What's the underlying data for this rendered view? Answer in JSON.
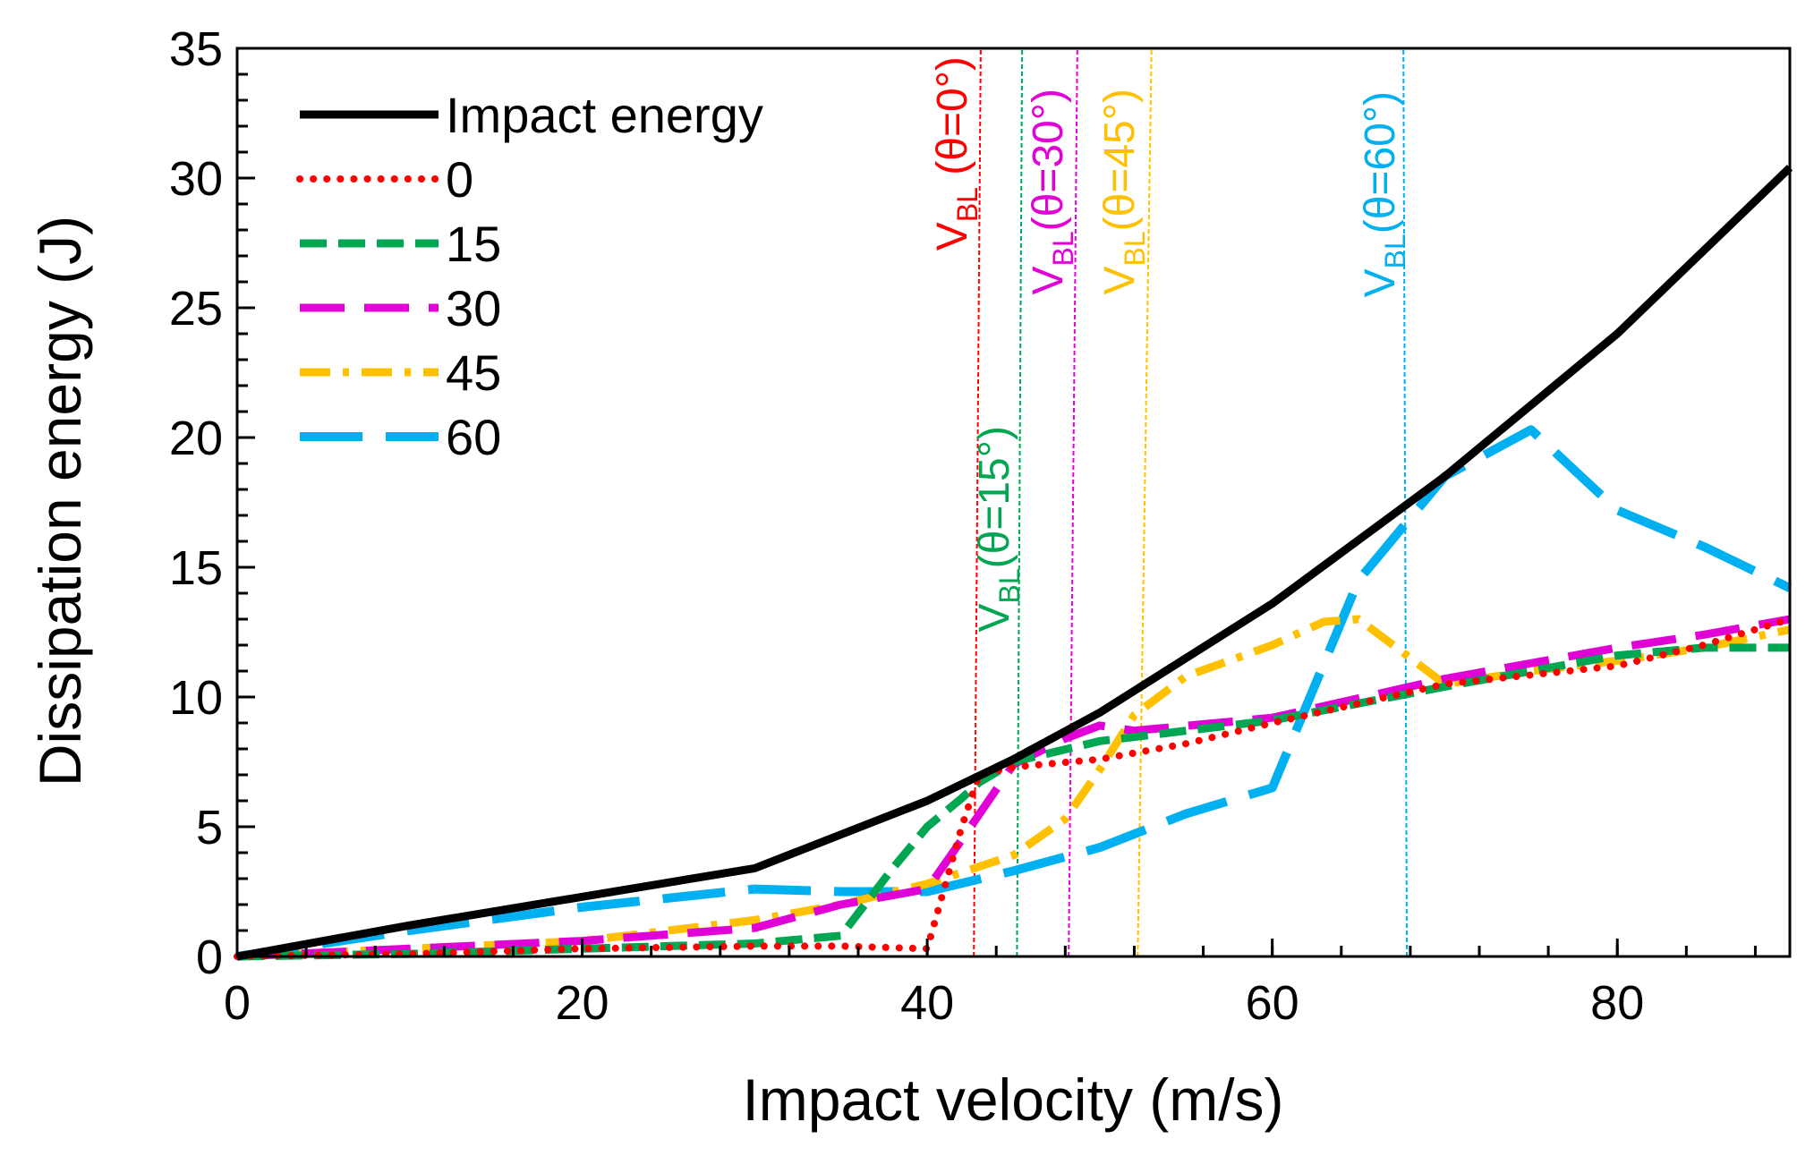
{
  "chart_data": {
    "type": "line",
    "xlabel": "Impact velocity (m/s)",
    "ylabel": "Dissipation energy (J)",
    "xlim": [
      0,
      90
    ],
    "ylim": [
      0,
      35
    ],
    "xticks": [
      0,
      20,
      40,
      60,
      80
    ],
    "yticks": [
      0,
      5,
      10,
      15,
      20,
      25,
      30,
      35
    ],
    "x_minor_step": 4,
    "y_minor_step": 1,
    "legend_position": "top-left",
    "series": [
      {
        "name": "Impact energy",
        "color": "#000000",
        "style": "solid",
        "x": [
          0,
          10,
          20,
          30,
          40,
          45,
          50,
          60,
          70,
          80,
          90
        ],
        "y": [
          0,
          1.2,
          2.3,
          3.4,
          6.0,
          7.6,
          9.4,
          13.6,
          18.5,
          24.0,
          30.4
        ]
      },
      {
        "name": "0",
        "color": "#ff0000",
        "style": "dotted",
        "x": [
          0,
          10,
          20,
          30,
          35,
          40,
          42,
          43,
          45,
          50,
          55,
          60,
          70,
          80,
          85,
          90
        ],
        "y": [
          0,
          0.1,
          0.3,
          0.4,
          0.4,
          0.3,
          5.0,
          7.0,
          7.3,
          7.6,
          8.2,
          9.0,
          10.5,
          11.2,
          12.0,
          13.0
        ]
      },
      {
        "name": "15",
        "color": "#00a651",
        "style": "dashed",
        "x": [
          0,
          10,
          20,
          30,
          35,
          38,
          40,
          42,
          43,
          45,
          50,
          60,
          70,
          80,
          85,
          90
        ],
        "y": [
          0,
          0.1,
          0.3,
          0.5,
          0.8,
          3.4,
          5.0,
          6.1,
          6.7,
          7.5,
          8.3,
          9.1,
          10.4,
          11.6,
          11.9,
          11.9
        ]
      },
      {
        "name": "30",
        "color": "#e100d6",
        "style": "longdash",
        "x": [
          0,
          10,
          20,
          30,
          35,
          40,
          42,
          45,
          48,
          50,
          52,
          60,
          70,
          80,
          85,
          90
        ],
        "y": [
          0,
          0.3,
          0.6,
          1.1,
          2.0,
          2.6,
          4.5,
          7.4,
          8.4,
          8.9,
          8.7,
          9.2,
          10.7,
          11.9,
          12.4,
          13.0
        ]
      },
      {
        "name": "45",
        "color": "#ffc000",
        "style": "dashdot",
        "x": [
          0,
          10,
          20,
          30,
          35,
          40,
          45,
          48,
          50,
          52,
          55,
          60,
          63,
          65,
          68,
          70,
          75,
          80,
          85,
          90
        ],
        "y": [
          0,
          0.3,
          0.6,
          1.4,
          2.0,
          2.8,
          3.9,
          5.3,
          7.2,
          9.3,
          10.8,
          12.0,
          12.9,
          13.0,
          11.5,
          10.5,
          11.0,
          11.4,
          11.9,
          12.6
        ]
      },
      {
        "name": "60",
        "color": "#00b0f0",
        "style": "widedash",
        "x": [
          0,
          5,
          10,
          20,
          30,
          35,
          40,
          45,
          50,
          55,
          60,
          65,
          70,
          75,
          80,
          85,
          90
        ],
        "y": [
          0,
          0.5,
          1.0,
          1.9,
          2.6,
          2.5,
          2.5,
          3.3,
          4.2,
          5.5,
          6.5,
          14.5,
          18.5,
          20.3,
          17.2,
          15.8,
          14.2
        ]
      }
    ],
    "annotations": [
      {
        "label": "V",
        "sub": "BL",
        "suffix": " (θ=0°)",
        "color": "#ff0000",
        "x_bottom": 42.7,
        "x_top": 43.1,
        "label_y": 27.2
      },
      {
        "label": "V",
        "sub": "BL",
        "suffix": "(θ=15°)",
        "color": "#00a651",
        "x_bottom": 45.2,
        "x_top": 45.5,
        "label_y": 12.5
      },
      {
        "label": "V",
        "sub": "BL",
        "suffix": "(θ=30°)",
        "color": "#e100d6",
        "x_bottom": 48.2,
        "x_top": 48.7,
        "label_y": 25.5
      },
      {
        "label": "V",
        "sub": "BL",
        "suffix": "(θ=45°)",
        "color": "#ffc000",
        "x_bottom": 52.2,
        "x_top": 53.0,
        "label_y": 25.5
      },
      {
        "label": "V",
        "sub": "BL",
        "suffix": "(θ=60°)",
        "color": "#00b0f0",
        "x_bottom": 67.8,
        "x_top": 67.6,
        "label_y": 25.4
      }
    ]
  }
}
